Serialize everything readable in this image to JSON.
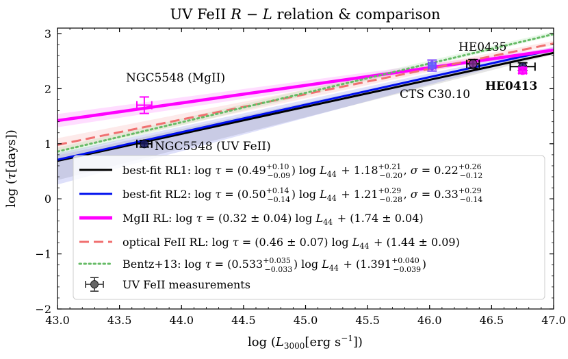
{
  "chart_data": {
    "type": "scatter",
    "title": "UV FeII R − L relation & comparison",
    "title_parts": [
      "UV FeII ",
      "R",
      " − ",
      "L",
      " relation & comparison"
    ],
    "xlabel": "log (L3000[erg s−1])",
    "xlabel_parts": [
      "log (",
      "L",
      "3000",
      "[erg s",
      "−1",
      "])"
    ],
    "ylabel": "log (τ[days])",
    "ylabel_parts": [
      "log (",
      "τ",
      "[days])"
    ],
    "xlim": [
      43.0,
      47.0
    ],
    "ylim": [
      -2,
      3.1
    ],
    "xticks": [
      43.0,
      43.5,
      44.0,
      44.5,
      45.0,
      45.5,
      46.0,
      46.5,
      47.0
    ],
    "xtick_labels": [
      "43.0",
      "43.5",
      "44.0",
      "44.5",
      "45.0",
      "45.5",
      "46.0",
      "46.5",
      "47.0"
    ],
    "yticks": [
      -2,
      -1,
      0,
      1,
      2,
      3
    ],
    "ytick_labels": [
      "−2",
      "−1",
      "0",
      "1",
      "2",
      "3"
    ],
    "legend_position": "lower-right",
    "lines": [
      {
        "name": "best-fit RL1",
        "slope": 0.49,
        "intercept": 1.18,
        "color": "#000000",
        "style": "solid",
        "band_lo": 0.35,
        "band_hi": 0.1,
        "band_color": "#8a8a8a"
      },
      {
        "name": "best-fit RL2",
        "slope": 0.5,
        "intercept": 1.21,
        "color": "#0010ee",
        "style": "solid",
        "band_lo": 0.45,
        "band_hi": 0.12,
        "band_color": "#6a72e8"
      },
      {
        "name": "MgII RL",
        "slope": 0.32,
        "intercept": 1.74,
        "color": "#ff00ff",
        "style": "solid",
        "band_lo": 0.12,
        "band_hi": 0.12,
        "band_color": "#ff66ff"
      },
      {
        "name": "optical FeII RL",
        "slope": 0.46,
        "intercept": 1.44,
        "color": "#f07070",
        "style": "dashed",
        "band_lo": 0.12,
        "band_hi": 0.12,
        "band_color": "#f7a0a0"
      },
      {
        "name": "Bentz+13",
        "slope": 0.533,
        "intercept": 1.391,
        "color": "#66bb66",
        "style": "dotted",
        "band_lo": 0.07,
        "band_hi": 0.07,
        "band_color": "#99dd99"
      }
    ],
    "points": [
      {
        "name": "NGC5548 (UV FeII)",
        "x": 43.7,
        "y": 1.0,
        "xerr": 0.06,
        "yerr": 0.06,
        "color": "#000000",
        "face": "#1a1a60"
      },
      {
        "name": "NGC5548 (MgII)",
        "x": 43.7,
        "y": 1.7,
        "xerr": 0.06,
        "yerr": 0.15,
        "color": "#ff00ff",
        "face": "none"
      },
      {
        "name": "CTS C30.10",
        "x": 46.02,
        "y": 2.42,
        "xerr": 0.03,
        "yerr": 0.1,
        "color": "#7a40ff",
        "face": "#6060ff"
      },
      {
        "name": "HE0435",
        "x": 46.35,
        "y": 2.45,
        "xerr": 0.05,
        "yerr": 0.08,
        "color": "#000000",
        "face": "#7a2a8a"
      },
      {
        "name": "HE0413",
        "x": 46.75,
        "y": 2.4,
        "xerr": 0.1,
        "yerr": 0.07,
        "color": "#000000",
        "face": "#202060"
      },
      {
        "name": "HE0413 (MgII)",
        "x": 46.75,
        "y": 2.33,
        "xerr": 0.03,
        "yerr": 0.05,
        "color": "#ff00ff",
        "face": "#ff00ff"
      }
    ],
    "annotations": [
      {
        "text": "NGC5548 (MgII)",
        "bold": false
      },
      {
        "text": "NGC5548 (UV FeII)",
        "bold": false
      },
      {
        "text": "HE0435",
        "bold": false
      },
      {
        "text": "CTS C30.10",
        "bold": false
      },
      {
        "text": "HE0413",
        "bold": true
      }
    ],
    "legend_entries": [
      {
        "label": "best-fit RL1: log τ = (0.49 +0.10 −0.09) log L44 + 1.18 +0.21 −0.20, σ = 0.22 +0.26 −0.12",
        "color": "#000000",
        "style": "solid",
        "width": 3,
        "parts": [
          [
            "t",
            "best-fit RL1:  log "
          ],
          [
            "i",
            "τ"
          ],
          [
            "t",
            " = (0.49"
          ],
          [
            "ss",
            "+0.10",
            "−0.09"
          ],
          [
            "t",
            ") log "
          ],
          [
            "i",
            "L"
          ],
          [
            "sub",
            "44"
          ],
          [
            "t",
            " + 1.18"
          ],
          [
            "ss",
            "+0.21",
            "−0.20"
          ],
          [
            "t",
            ", "
          ],
          [
            "i",
            "σ"
          ],
          [
            "t",
            " = 0.22"
          ],
          [
            "ss",
            "+0.26",
            "−0.12"
          ]
        ]
      },
      {
        "label": "best-fit RL2: log τ = (0.50 +0.14 −0.14) log L44 + 1.21 +0.29 −0.28, σ = 0.33 +0.29 −0.14",
        "color": "#0010ee",
        "style": "solid",
        "width": 3,
        "parts": [
          [
            "t",
            "best-fit RL2:  log "
          ],
          [
            "i",
            "τ"
          ],
          [
            "t",
            " = (0.50"
          ],
          [
            "ss",
            "+0.14",
            "−0.14"
          ],
          [
            "t",
            ") log "
          ],
          [
            "i",
            "L"
          ],
          [
            "sub",
            "44"
          ],
          [
            "t",
            " + 1.21"
          ],
          [
            "ss",
            "+0.29",
            "−0.28"
          ],
          [
            "t",
            ", "
          ],
          [
            "i",
            "σ"
          ],
          [
            "t",
            " = 0.33"
          ],
          [
            "ss",
            "+0.29",
            "−0.14"
          ]
        ]
      },
      {
        "label": "MgII RL: log τ = (0.32 ± 0.04) log L44 + (1.74 ± 0.04)",
        "color": "#ff00ff",
        "style": "solid",
        "width": 5,
        "parts": [
          [
            "t",
            "MgII RL:  log "
          ],
          [
            "i",
            "τ"
          ],
          [
            "t",
            " = (0.32 ± 0.04) log "
          ],
          [
            "i",
            "L"
          ],
          [
            "sub",
            "44"
          ],
          [
            "t",
            " + (1.74 ± 0.04)"
          ]
        ]
      },
      {
        "label": "optical FeII RL: log τ = (0.46 ± 0.07) log L44 + (1.44 ± 0.09)",
        "color": "#f07070",
        "style": "dashed",
        "width": 3,
        "parts": [
          [
            "t",
            "optical FeII RL:  log "
          ],
          [
            "i",
            "τ"
          ],
          [
            "t",
            " = (0.46 ± 0.07) log "
          ],
          [
            "i",
            "L"
          ],
          [
            "sub",
            "44"
          ],
          [
            "t",
            " + (1.44 ± 0.09)"
          ]
        ]
      },
      {
        "label": "Bentz+13: log τ = (0.533 +0.035 −0.033) log L44 + (1.391 +0.040 −0.039)",
        "color": "#66bb66",
        "style": "dotted",
        "width": 3,
        "parts": [
          [
            "t",
            "Bentz+13:  log "
          ],
          [
            "i",
            "τ"
          ],
          [
            "t",
            " = (0.533"
          ],
          [
            "ss",
            "+0.035",
            "−0.033"
          ],
          [
            "t",
            ") log "
          ],
          [
            "i",
            "L"
          ],
          [
            "sub",
            "44"
          ],
          [
            "t",
            " + (1.391"
          ],
          [
            "ss",
            "+0.040",
            "−0.039"
          ],
          [
            "t",
            ")"
          ]
        ]
      },
      {
        "label": "UV FeII measurements",
        "color": "#000000",
        "style": "marker",
        "width": 2,
        "parts": [
          [
            "t",
            "UV FeII measurements"
          ]
        ]
      }
    ]
  }
}
